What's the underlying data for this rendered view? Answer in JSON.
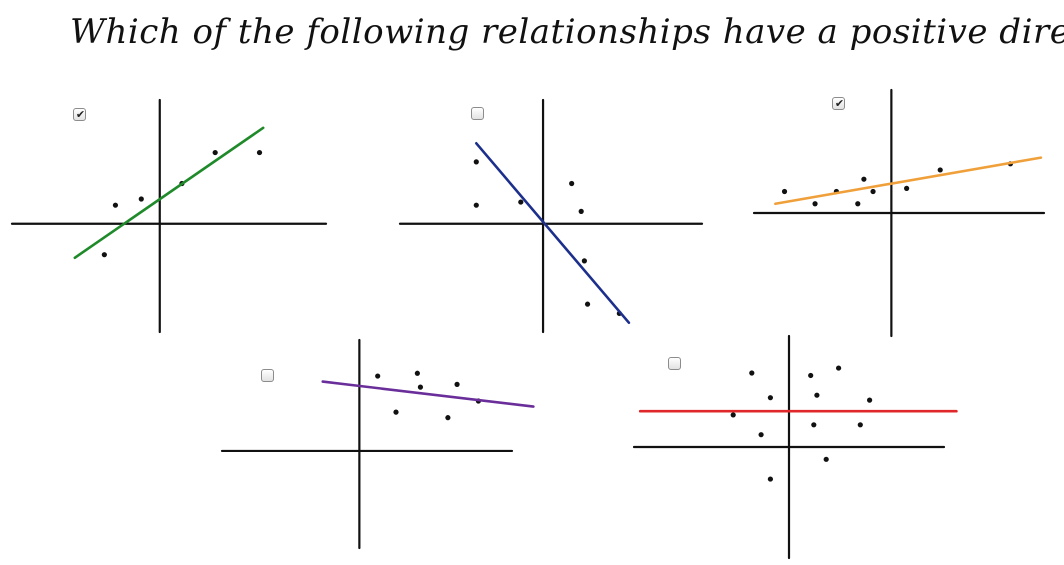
{
  "question": "Which of the following relationships have a positive direction?",
  "colors": {
    "axis": "#111111",
    "point": "#111111"
  },
  "chart_data": [
    {
      "type": "scatter",
      "id": "plot-1",
      "checked": true,
      "line_color": "#1f8a2a",
      "xlim": [
        -4,
        4.5
      ],
      "ylim": [
        -3.5,
        4
      ],
      "points": [
        [
          -1.5,
          -1.0
        ],
        [
          -1.2,
          0.6
        ],
        [
          -0.5,
          0.8
        ],
        [
          0.6,
          1.3
        ],
        [
          1.5,
          2.3
        ],
        [
          2.7,
          2.3
        ]
      ],
      "fit_line": [
        [
          -2.3,
          -1.1
        ],
        [
          2.8,
          3.1
        ]
      ]
    },
    {
      "type": "scatter",
      "id": "plot-2",
      "checked": false,
      "line_color": "#1c2f8c",
      "xlim": [
        -4.5,
        5
      ],
      "ylim": [
        -3.5,
        4
      ],
      "points": [
        [
          -2.1,
          2.0
        ],
        [
          -2.1,
          0.6
        ],
        [
          -0.7,
          0.7
        ],
        [
          0.9,
          1.3
        ],
        [
          1.2,
          0.4
        ],
        [
          1.3,
          -1.2
        ],
        [
          1.4,
          -2.6
        ],
        [
          2.4,
          -2.9
        ]
      ],
      "fit_line": [
        [
          -2.1,
          2.6
        ],
        [
          2.7,
          -3.2
        ]
      ]
    },
    {
      "type": "scatter",
      "id": "plot-3",
      "checked": true,
      "line_color": "#f0a03a",
      "xlim": [
        -4.5,
        5
      ],
      "ylim": [
        -4,
        4
      ],
      "points": [
        [
          -3.5,
          0.7
        ],
        [
          -2.5,
          0.3
        ],
        [
          -1.8,
          0.7
        ],
        [
          -1.1,
          0.3
        ],
        [
          -0.9,
          1.1
        ],
        [
          -0.6,
          0.7
        ],
        [
          0.5,
          0.8
        ],
        [
          1.6,
          1.4
        ],
        [
          3.9,
          1.6
        ]
      ],
      "fit_line": [
        [
          -3.8,
          0.3
        ],
        [
          4.9,
          1.8
        ]
      ]
    },
    {
      "type": "scatter",
      "id": "plot-4",
      "checked": false,
      "line_color": "#6a2e9a",
      "xlim": [
        -4.5,
        5
      ],
      "ylim": [
        -3.5,
        4
      ],
      "points": [
        [
          0.6,
          2.7
        ],
        [
          1.9,
          2.8
        ],
        [
          2.0,
          2.3
        ],
        [
          1.2,
          1.4
        ],
        [
          3.2,
          2.4
        ],
        [
          2.9,
          1.2
        ],
        [
          3.9,
          1.8
        ]
      ],
      "fit_line": [
        [
          -1.2,
          2.5
        ],
        [
          5.7,
          1.6
        ]
      ]
    },
    {
      "type": "scatter",
      "id": "plot-5",
      "checked": false,
      "line_color": "#e0282a",
      "xlim": [
        -5,
        5
      ],
      "ylim": [
        -4.5,
        4.5
      ],
      "points": [
        [
          -1.2,
          3.0
        ],
        [
          0.7,
          2.9
        ],
        [
          1.6,
          3.2
        ],
        [
          -0.6,
          2.0
        ],
        [
          0.9,
          2.1
        ],
        [
          2.6,
          1.9
        ],
        [
          -1.8,
          1.3
        ],
        [
          0.8,
          0.9
        ],
        [
          2.3,
          0.9
        ],
        [
          -0.9,
          0.5
        ],
        [
          1.2,
          -0.5
        ],
        [
          -0.6,
          -1.3
        ]
      ],
      "fit_line": [
        [
          -4.8,
          1.45
        ],
        [
          5.4,
          1.45
        ]
      ]
    }
  ]
}
